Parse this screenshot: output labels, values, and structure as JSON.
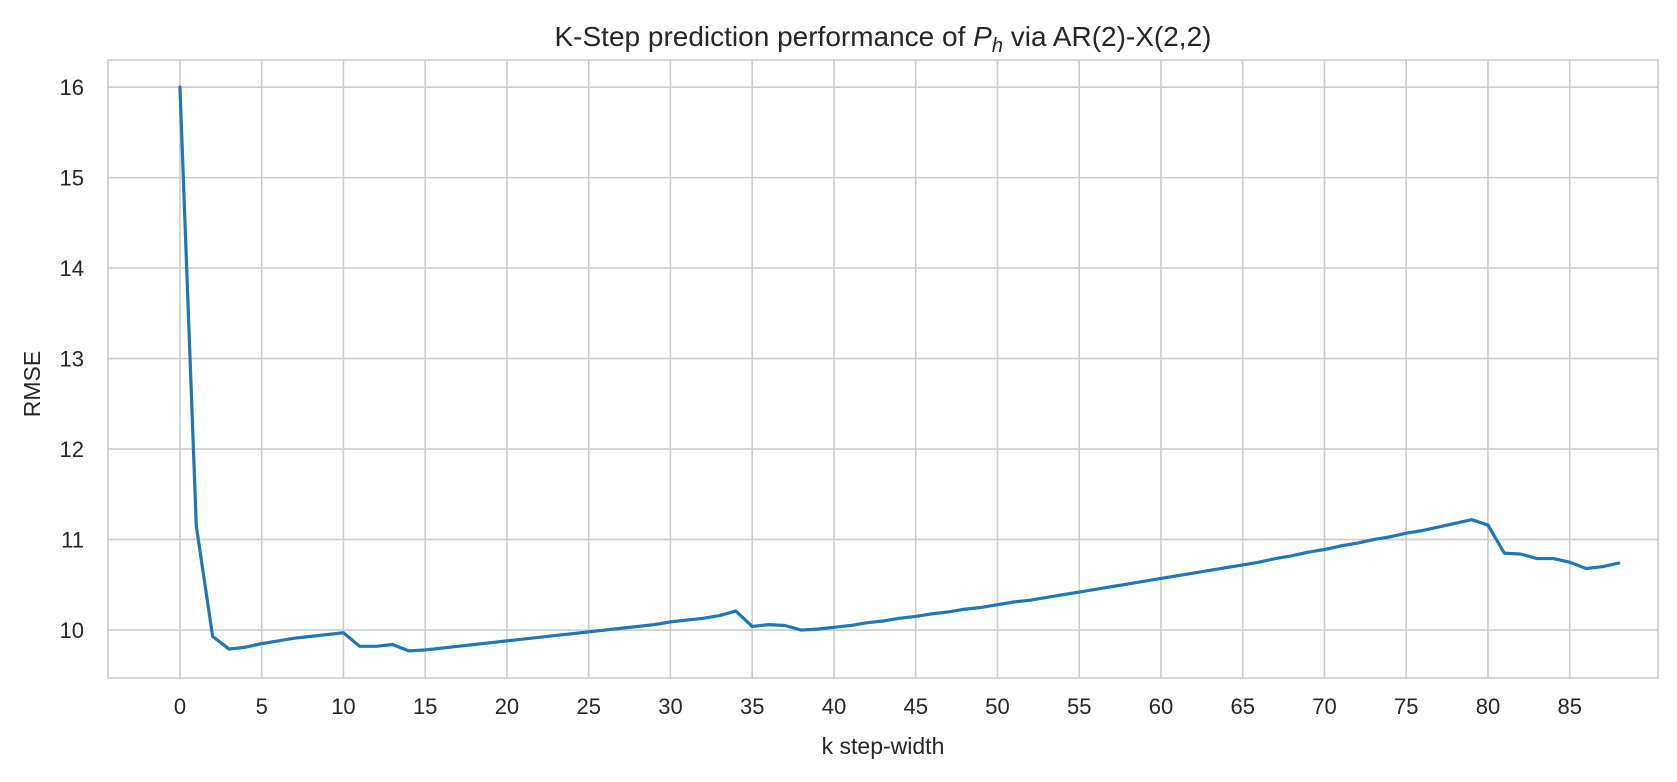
{
  "chart_data": {
    "type": "line",
    "title_prefix": "K-Step prediction performance of ",
    "title_symbol": "P",
    "title_subscript": "h",
    "title_suffix": " via AR(2)-X(2,2)",
    "xlabel": "k step-width",
    "ylabel": "RMSE",
    "xlim": [
      -4.4,
      90.4
    ],
    "ylim": [
      9.47,
      16.3
    ],
    "xticks": [
      0,
      5,
      10,
      15,
      20,
      25,
      30,
      35,
      40,
      45,
      50,
      55,
      60,
      65,
      70,
      75,
      80,
      85
    ],
    "yticks": [
      10,
      11,
      12,
      13,
      14,
      15,
      16
    ],
    "grid": true,
    "series": [
      {
        "color": "#1f77b4",
        "x": [
          0,
          1,
          2,
          3,
          4,
          5,
          6,
          7,
          8,
          9,
          10,
          11,
          12,
          13,
          14,
          15,
          16,
          17,
          18,
          19,
          20,
          21,
          22,
          23,
          24,
          25,
          26,
          27,
          28,
          29,
          30,
          31,
          32,
          33,
          34,
          35,
          36,
          37,
          38,
          39,
          40,
          41,
          42,
          43,
          44,
          45,
          46,
          47,
          48,
          49,
          50,
          51,
          52,
          53,
          54,
          55,
          56,
          57,
          58,
          59,
          60,
          61,
          62,
          63,
          64,
          65,
          66,
          67,
          68,
          69,
          70,
          71,
          72,
          73,
          74,
          75,
          76,
          77,
          78,
          79,
          80,
          81,
          82,
          83,
          84,
          85,
          86,
          87,
          88
        ],
        "y": [
          16.0,
          11.15,
          9.93,
          9.79,
          9.81,
          9.85,
          9.88,
          9.91,
          9.93,
          9.95,
          9.97,
          9.82,
          9.82,
          9.84,
          9.77,
          9.78,
          9.8,
          9.82,
          9.84,
          9.86,
          9.88,
          9.9,
          9.92,
          9.94,
          9.96,
          9.98,
          10.0,
          10.02,
          10.04,
          10.06,
          10.09,
          10.11,
          10.13,
          10.16,
          10.21,
          10.04,
          10.06,
          10.05,
          10.0,
          10.01,
          10.03,
          10.05,
          10.08,
          10.1,
          10.13,
          10.15,
          10.18,
          10.2,
          10.23,
          10.25,
          10.28,
          10.31,
          10.33,
          10.36,
          10.39,
          10.42,
          10.45,
          10.48,
          10.51,
          10.54,
          10.57,
          10.6,
          10.63,
          10.66,
          10.69,
          10.72,
          10.75,
          10.79,
          10.82,
          10.86,
          10.89,
          10.93,
          10.96,
          11.0,
          11.03,
          11.07,
          11.1,
          11.14,
          11.18,
          11.22,
          11.16,
          10.85,
          10.84,
          10.79,
          10.79,
          10.75,
          10.68,
          10.7,
          10.74
        ]
      }
    ]
  }
}
